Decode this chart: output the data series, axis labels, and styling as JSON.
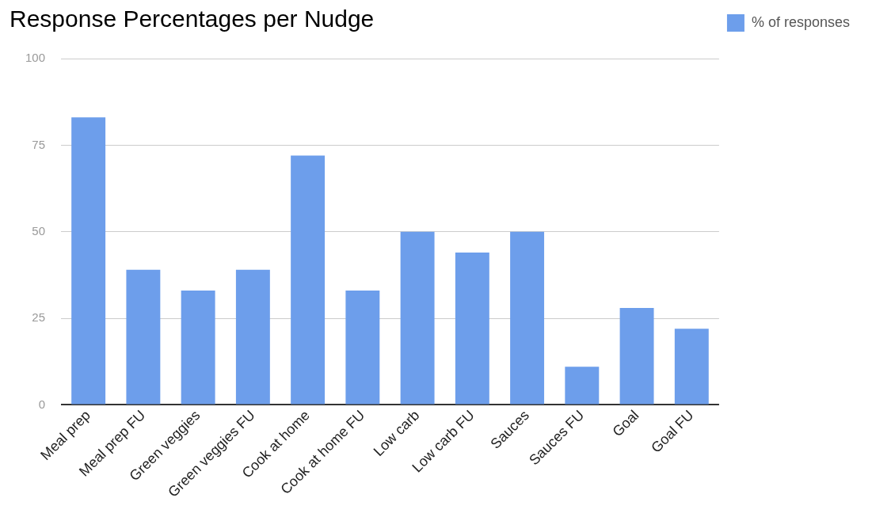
{
  "chart_data": {
    "type": "bar",
    "title": "Response Percentages per Nudge",
    "categories": [
      "Meal prep",
      "Meal prep FU",
      "Green veggies",
      "Green veggies FU",
      "Cook at home",
      "Cook at home FU",
      "Low carb",
      "Low carb FU",
      "Sauces",
      "Sauces FU",
      "Goal",
      "Goal FU"
    ],
    "series": [
      {
        "name": "% of responses",
        "color": "#6d9eeb",
        "values": [
          83,
          39,
          33,
          39,
          72,
          33,
          50,
          44,
          50,
          11,
          28,
          22
        ]
      }
    ],
    "ylim": [
      0,
      100
    ],
    "yticks": [
      0,
      25,
      50,
      75,
      100
    ],
    "grid": "y",
    "legend": "top right"
  }
}
